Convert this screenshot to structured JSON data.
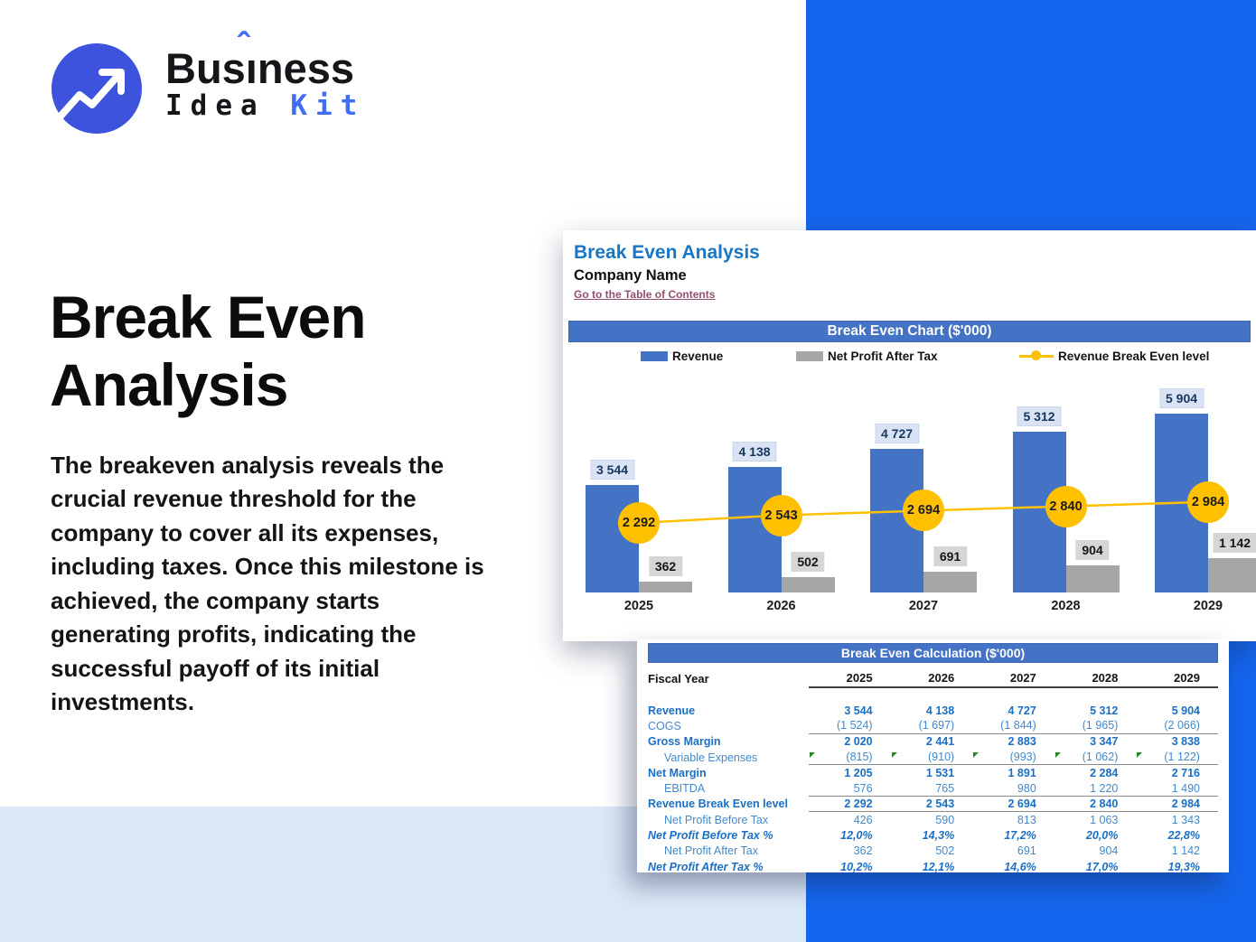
{
  "logo": {
    "title_pre": "Bus",
    "title_i": "ı",
    "title_post": "ness",
    "caret": "ˆ",
    "subtitle_dark": "Idea ",
    "subtitle_accent": "Kit"
  },
  "hero": {
    "title": "Break Even Analysis",
    "description": "The breakeven analysis reveals the crucial revenue threshold for the company to cover all its expenses, including taxes. Once this milestone is achieved, the company starts generating profits, indicating the successful payoff of its initial investments."
  },
  "sheet": {
    "title": "Break Even Analysis",
    "company": "Company Name",
    "toc_link": "Go to the Table of Contents"
  },
  "colors": {
    "brand_blue": "#1566ee",
    "logo_circle": "#3d53de",
    "accent_blue": "#3f6df4",
    "excel_bar_blue": "#4472c4",
    "revenue_bar": "#4472c4",
    "net_profit_bar": "#a6a6a6",
    "break_even_yellow": "#ffc000",
    "light_band": "#dbe8f8",
    "table_text_blue": "#1b6fc4",
    "toc_link": "#954f72"
  },
  "chart_data": {
    "type": "bar",
    "title": "Break Even Chart ($'000)",
    "categories": [
      "2025",
      "2026",
      "2027",
      "2028",
      "2029"
    ],
    "series": [
      {
        "name": "Revenue",
        "type": "bar",
        "color": "#4472c4",
        "values": [
          3544,
          4138,
          4727,
          5312,
          5904
        ],
        "labels": [
          "3 544",
          "4 138",
          "4 727",
          "5 312",
          "5 904"
        ]
      },
      {
        "name": "Net Profit After Tax",
        "type": "bar",
        "color": "#a6a6a6",
        "values": [
          362,
          502,
          691,
          904,
          1142
        ],
        "labels": [
          "362",
          "502",
          "691",
          "904",
          "1 142"
        ]
      },
      {
        "name": "Revenue Break Even level",
        "type": "line",
        "color": "#ffc000",
        "values": [
          2292,
          2543,
          2694,
          2840,
          2984
        ],
        "labels": [
          "2 292",
          "2 543",
          "2 694",
          "2 840",
          "2 984"
        ]
      }
    ],
    "ylim": [
      0,
      6500
    ],
    "grid": false,
    "legend_position": "top"
  },
  "table": {
    "title": "Break Even Calculation ($'000)",
    "header_label": "Fiscal Year",
    "years": [
      "2025",
      "2026",
      "2027",
      "2028",
      "2029"
    ],
    "rows": [
      {
        "label": "Revenue",
        "style": "bold",
        "values": [
          "3 544",
          "4 138",
          "4 727",
          "5 312",
          "5 904"
        ]
      },
      {
        "label": "COGS",
        "style": "regular",
        "border": true,
        "values": [
          "(1 524)",
          "(1 697)",
          "(1 844)",
          "(1 965)",
          "(2 066)"
        ]
      },
      {
        "label": "Gross Margin",
        "style": "bold",
        "values": [
          "2 020",
          "2 441",
          "2 883",
          "3 347",
          "3 838"
        ]
      },
      {
        "label": "Variable Expenses",
        "style": "regular-indent",
        "border": true,
        "flags": true,
        "values": [
          "(815)",
          "(910)",
          "(993)",
          "(1 062)",
          "(1 122)"
        ]
      },
      {
        "label": "Net Margin",
        "style": "bold",
        "values": [
          "1 205",
          "1 531",
          "1 891",
          "2 284",
          "2 716"
        ]
      },
      {
        "label": "EBITDA",
        "style": "regular-indent",
        "border": true,
        "values": [
          "576",
          "765",
          "980",
          "1 220",
          "1 490"
        ]
      },
      {
        "label": "Revenue Break Even level",
        "style": "bold",
        "border": true,
        "values": [
          "2 292",
          "2 543",
          "2 694",
          "2 840",
          "2 984"
        ]
      },
      {
        "label": "Net Profit Before Tax",
        "style": "regular-indent",
        "values": [
          "426",
          "590",
          "813",
          "1 063",
          "1 343"
        ]
      },
      {
        "label": "Net Profit Before Tax %",
        "style": "bold-italic",
        "values": [
          "12,0%",
          "14,3%",
          "17,2%",
          "20,0%",
          "22,8%"
        ]
      },
      {
        "label": "Net Profit After Tax",
        "style": "regular-indent",
        "values": [
          "362",
          "502",
          "691",
          "904",
          "1 142"
        ]
      },
      {
        "label": "Net Profit After Tax %",
        "style": "bold-italic",
        "values": [
          "10,2%",
          "12,1%",
          "14,6%",
          "17,0%",
          "19,3%"
        ]
      }
    ]
  }
}
